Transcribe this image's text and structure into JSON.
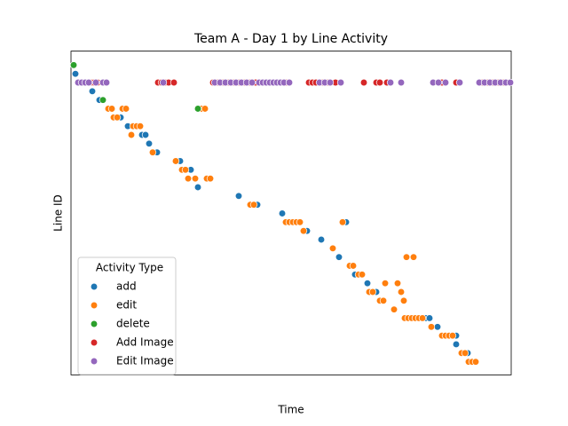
{
  "chart_data": {
    "type": "scatter",
    "title": "Team A - Day 1 by Line Activity",
    "x_label": "Time",
    "y_label": "Line ID",
    "xlim": [
      0,
      496
    ],
    "ylim": [
      35.5,
      -1.6
    ],
    "legend_title": "Activity Type",
    "legend": "lower left",
    "series": [
      {
        "name": "add",
        "color": "#1f77b4",
        "x": [
          5,
          24,
          32,
          56,
          64,
          80,
          84,
          88,
          97,
          123,
          135,
          143,
          189,
          210,
          238,
          310,
          266,
          282,
          302,
          320,
          334,
          344,
          400,
          404,
          413,
          434,
          434,
          447
        ],
        "values": [
          1,
          3,
          4,
          6,
          7,
          8,
          8,
          9,
          10,
          11,
          12,
          14,
          15,
          16,
          17,
          18,
          19,
          20,
          22,
          24,
          25,
          26,
          29,
          29,
          30,
          31,
          32,
          33
        ]
      },
      {
        "name": "edit",
        "color": "#ff7f0e",
        "x": [
          42,
          46,
          58,
          62,
          147,
          151,
          48,
          52,
          70,
          74,
          78,
          68,
          92,
          118,
          125,
          129,
          132,
          140,
          153,
          157,
          202,
          206,
          242,
          246,
          250,
          254,
          258,
          306,
          262,
          295,
          378,
          386,
          314,
          318,
          324,
          328,
          354,
          368,
          336,
          340,
          372,
          348,
          352,
          375,
          364,
          376,
          380,
          384,
          388,
          392,
          396,
          406,
          418,
          422,
          426,
          430,
          440,
          444,
          448,
          452,
          456
        ],
        "values": [
          5,
          5,
          5,
          5,
          5,
          5,
          6,
          6,
          7,
          7,
          7,
          8,
          10,
          11,
          12,
          12,
          13,
          13,
          13,
          13,
          16,
          16,
          18,
          18,
          18,
          18,
          18,
          18,
          19,
          21,
          22,
          22,
          23,
          23,
          24,
          24,
          25,
          25,
          26,
          26,
          26,
          27,
          27,
          27,
          28,
          29,
          29,
          29,
          29,
          29,
          29,
          30,
          31,
          31,
          31,
          31,
          33,
          33,
          34,
          34,
          34
        ]
      },
      {
        "name": "delete",
        "color": "#2ca02c",
        "x": [
          3,
          36,
          143
        ],
        "values": [
          0,
          4,
          5
        ]
      },
      {
        "name": "Add Image",
        "color": "#d62728",
        "x": [
          10,
          14,
          18,
          22,
          24,
          26,
          30,
          98,
          102,
          106,
          110,
          116,
          160,
          166,
          172,
          178,
          184,
          190,
          196,
          202,
          208,
          242,
          268,
          272,
          276,
          284,
          290,
          298,
          330,
          344,
          348,
          356,
          418,
          434,
          464,
          470,
          476,
          482,
          488,
          494
        ],
        "values": [
          2,
          2,
          2,
          2,
          2,
          2,
          2,
          2,
          2,
          2,
          2,
          2,
          2,
          2,
          2,
          2,
          2,
          2,
          2,
          2,
          2,
          2,
          2,
          2,
          2,
          2,
          2,
          2,
          2,
          2,
          2,
          2,
          2,
          2,
          2,
          2,
          2,
          2,
          2,
          2
        ]
      },
      {
        "name": "Edit Image",
        "color": "#9467bd",
        "x": [
          8,
          12,
          16,
          20,
          28,
          36,
          40,
          104,
          162,
          168,
          174,
          180,
          186,
          192,
          198,
          204,
          212,
          216,
          220,
          224,
          228,
          232,
          236,
          240,
          246,
          280,
          286,
          292,
          304,
          360,
          372,
          408,
          414,
          422,
          438,
          460,
          466,
          472,
          478,
          484,
          490,
          495
        ],
        "values": [
          2,
          2,
          2,
          2,
          2,
          2,
          2,
          2,
          2,
          2,
          2,
          2,
          2,
          2,
          2,
          2,
          2,
          2,
          2,
          2,
          2,
          2,
          2,
          2,
          2,
          2,
          2,
          2,
          2,
          2,
          2,
          2,
          2,
          2,
          2,
          2,
          2,
          2,
          2,
          2,
          2,
          2
        ]
      }
    ]
  }
}
